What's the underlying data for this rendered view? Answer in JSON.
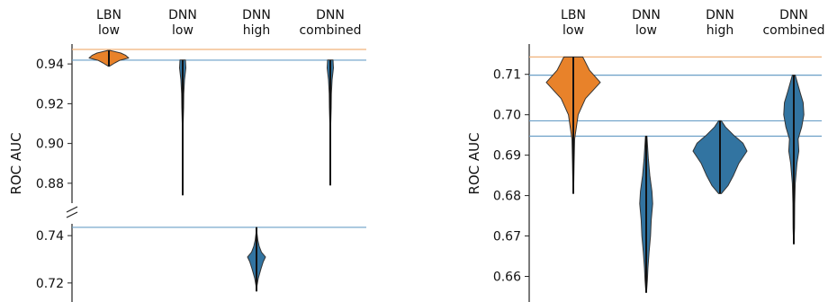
{
  "chart_data": [
    {
      "type": "violin",
      "ylabel": "ROC AUC",
      "categories": [
        "LBN\nlow",
        "DNN\nlow",
        "DNN\nhigh",
        "DNN\ncombined"
      ],
      "broken_axis": true,
      "upper_ylim": [
        0.87,
        0.95
      ],
      "upper_yticks": [
        "0.88",
        "0.90",
        "0.92",
        "0.94"
      ],
      "lower_ylim": [
        0.715,
        0.745
      ],
      "lower_yticks": [
        "0.72",
        "0.74"
      ],
      "hlines": [
        {
          "value": 0.9473,
          "color": "#f0b27a"
        },
        {
          "value": 0.9419,
          "color": "#6a9fc7"
        },
        {
          "value": 0.7435,
          "color": "#6a9fc7"
        }
      ],
      "series": [
        {
          "category_index": 0,
          "color": "#e8822a",
          "min": 0.9388,
          "max": 0.9468,
          "profile": [
            [
              0.9388,
              0.02
            ],
            [
              0.9405,
              0.3
            ],
            [
              0.9418,
              0.55
            ],
            [
              0.943,
              1.0
            ],
            [
              0.9443,
              0.85
            ],
            [
              0.9455,
              0.6
            ],
            [
              0.9468,
              0.05
            ]
          ]
        },
        {
          "category_index": 1,
          "color": "#3274a1",
          "min": 0.874,
          "max": 0.942,
          "profile": [
            [
              0.874,
              0.01
            ],
            [
              0.885,
              0.02
            ],
            [
              0.897,
              0.05
            ],
            [
              0.902,
              0.03
            ],
            [
              0.91,
              0.05
            ],
            [
              0.918,
              0.1
            ],
            [
              0.925,
              0.12
            ],
            [
              0.932,
              0.2
            ],
            [
              0.938,
              0.35
            ],
            [
              0.942,
              0.3
            ]
          ]
        },
        {
          "category_index": 2,
          "color": "#3274a1",
          "min": 0.7165,
          "max": 0.7435,
          "profile": [
            [
              0.7165,
              0.02
            ],
            [
              0.719,
              0.06
            ],
            [
              0.722,
              0.2
            ],
            [
              0.726,
              0.5
            ],
            [
              0.729,
              0.75
            ],
            [
              0.731,
              1.0
            ],
            [
              0.733,
              0.55
            ],
            [
              0.7355,
              0.3
            ],
            [
              0.738,
              0.15
            ],
            [
              0.741,
              0.05
            ],
            [
              0.7435,
              0.02
            ]
          ]
        },
        {
          "category_index": 3,
          "color": "#3274a1",
          "min": 0.879,
          "max": 0.942,
          "profile": [
            [
              0.879,
              0.01
            ],
            [
              0.888,
              0.02
            ],
            [
              0.897,
              0.05
            ],
            [
              0.902,
              0.03
            ],
            [
              0.91,
              0.05
            ],
            [
              0.918,
              0.1
            ],
            [
              0.925,
              0.12
            ],
            [
              0.932,
              0.2
            ],
            [
              0.938,
              0.35
            ],
            [
              0.942,
              0.3
            ]
          ]
        }
      ]
    },
    {
      "type": "violin",
      "ylabel": "ROC AUC",
      "categories": [
        "LBN\nlow",
        "DNN\nlow",
        "DNN\nhigh",
        "DNN\ncombined"
      ],
      "ylim": [
        0.655,
        0.7175
      ],
      "yticks": [
        "0.66",
        "0.67",
        "0.68",
        "0.69",
        "0.70",
        "0.71"
      ],
      "hlines": [
        {
          "value": 0.7143,
          "color": "#f0b27a"
        },
        {
          "value": 0.7098,
          "color": "#6a9fc7"
        },
        {
          "value": 0.6985,
          "color": "#6a9fc7"
        },
        {
          "value": 0.6947,
          "color": "#6a9fc7"
        }
      ],
      "series": [
        {
          "category_index": 0,
          "color": "#e8822a",
          "min": 0.6805,
          "max": 0.7143,
          "profile": [
            [
              0.6805,
              0.01
            ],
            [
              0.688,
              0.03
            ],
            [
              0.694,
              0.05
            ],
            [
              0.7,
              0.18
            ],
            [
              0.704,
              0.45
            ],
            [
              0.708,
              1.0
            ],
            [
              0.711,
              0.6
            ],
            [
              0.7143,
              0.35
            ]
          ]
        },
        {
          "category_index": 1,
          "color": "#3274a1",
          "min": 0.656,
          "max": 0.6947,
          "profile": [
            [
              0.656,
              0.02
            ],
            [
              0.659,
              0.08
            ],
            [
              0.662,
              0.12
            ],
            [
              0.666,
              0.2
            ],
            [
              0.67,
              0.3
            ],
            [
              0.674,
              0.35
            ],
            [
              0.678,
              0.45
            ],
            [
              0.681,
              0.4
            ],
            [
              0.685,
              0.25
            ],
            [
              0.689,
              0.15
            ],
            [
              0.6947,
              0.05
            ]
          ]
        },
        {
          "category_index": 2,
          "color": "#3274a1",
          "min": 0.6805,
          "max": 0.6985,
          "profile": [
            [
              0.6805,
              0.05
            ],
            [
              0.6825,
              0.3
            ],
            [
              0.685,
              0.5
            ],
            [
              0.688,
              0.7
            ],
            [
              0.691,
              1.0
            ],
            [
              0.693,
              0.85
            ],
            [
              0.695,
              0.5
            ],
            [
              0.697,
              0.2
            ],
            [
              0.6985,
              0.05
            ]
          ]
        },
        {
          "category_index": 3,
          "color": "#3274a1",
          "min": 0.668,
          "max": 0.7098,
          "profile": [
            [
              0.668,
              0.01
            ],
            [
              0.672,
              0.05
            ],
            [
              0.678,
              0.06
            ],
            [
              0.683,
              0.1
            ],
            [
              0.688,
              0.22
            ],
            [
              0.691,
              0.35
            ],
            [
              0.694,
              0.3
            ],
            [
              0.697,
              0.55
            ],
            [
              0.7,
              0.7
            ],
            [
              0.703,
              0.65
            ],
            [
              0.706,
              0.4
            ],
            [
              0.7098,
              0.1
            ]
          ]
        }
      ]
    }
  ]
}
